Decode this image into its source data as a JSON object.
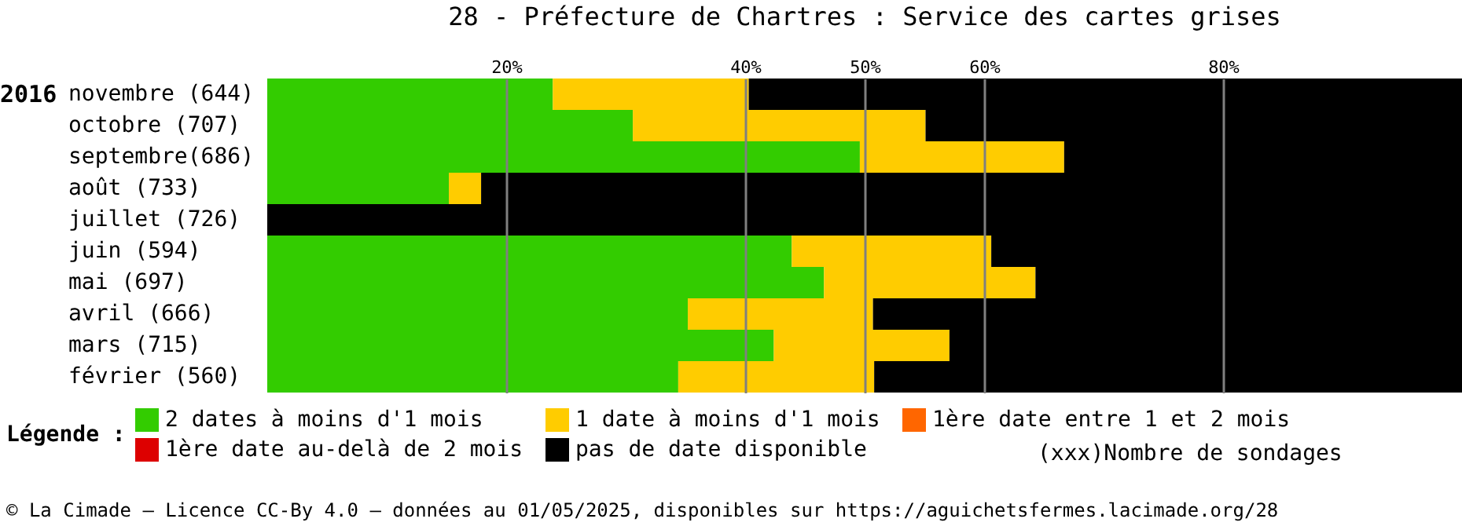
{
  "chart_data": {
    "type": "bar",
    "orientation": "horizontal",
    "stacked": true,
    "title": "28 - Préfecture de Chartres : Service des cartes grises",
    "legend_title": "Légende :",
    "categories": [
      "novembre (644)",
      "octobre (707)",
      "septembre(686)",
      "août (733)",
      "juillet (726)",
      "juin (594)",
      "mai (697)",
      "avril (666)",
      "mars (715)",
      "février (560)"
    ],
    "series": [
      {
        "name": "2 dates à moins d'1 mois",
        "color": "#33cc00",
        "values": [
          23.9,
          30.6,
          49.6,
          15.2,
          0,
          43.9,
          46.6,
          35.2,
          42.4,
          34.4
        ]
      },
      {
        "name": "1 date à moins d'1 mois",
        "color": "#ffcc00",
        "values": [
          16.4,
          24.5,
          17.1,
          2.7,
          0,
          16.7,
          17.7,
          15.5,
          14.7,
          16.4
        ]
      },
      {
        "name": "1ère date entre 1 et 2 mois",
        "color": "#ff6600",
        "values": [
          0,
          0,
          0,
          0,
          0,
          0,
          0,
          0,
          0,
          0
        ]
      },
      {
        "name": "1ère date au-delà de 2 mois",
        "color": "#dd0000",
        "values": [
          0,
          0,
          0,
          0,
          0,
          0,
          0,
          0,
          0,
          0
        ]
      },
      {
        "name": "pas de date disponible",
        "color": "#000000",
        "values": [
          59.7,
          44.9,
          33.3,
          82.1,
          100,
          39.4,
          35.7,
          49.3,
          42.9,
          49.2
        ]
      }
    ],
    "xlim": [
      0,
      100
    ],
    "xticks": [
      {
        "value": 20,
        "label": "20%"
      },
      {
        "value": 40,
        "label": "40%"
      },
      {
        "value": 50,
        "label": "50%"
      },
      {
        "value": 60,
        "label": "60%"
      },
      {
        "value": 80,
        "label": "80%"
      }
    ],
    "grid": "x",
    "legend": "bottom",
    "annotations": [
      "2016",
      "(xxx)Nombre de sondages",
      "© La Cimade – Licence CC-By 4.0 – données au 01/05/2025, disponibles sur https://aguichetsfermes.lacimade.org/28"
    ]
  }
}
